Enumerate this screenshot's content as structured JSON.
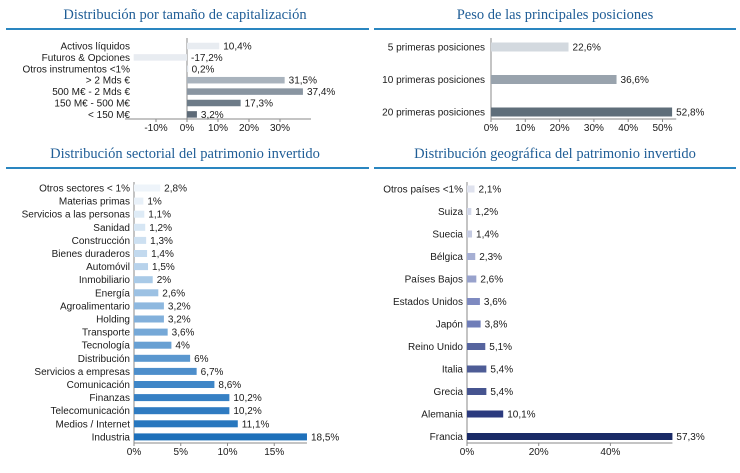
{
  "chart_data": [
    {
      "type": "bar",
      "orientation": "horizontal",
      "title": "Distribución por tamaño de capitalización",
      "categories": [
        "Activos líquidos",
        "Futuros & Opciones",
        "Otros instrumentos <1%",
        "> 2 Mds €",
        "500 M€ - 2 Mds €",
        "150 M€ - 500 M€",
        "< 150 M€"
      ],
      "values": [
        10.4,
        -17.2,
        0.2,
        31.5,
        37.4,
        17.3,
        3.2
      ],
      "labels": [
        "10,4%",
        "-17,2%",
        "0,2%",
        "31,5%",
        "37,4%",
        "17,3%",
        "3,2%"
      ],
      "colors": [
        "#e8ecf1",
        "#e8ecf1",
        "#dde3ea",
        "#a9b3bd",
        "#8995a1",
        "#6d7b88",
        "#5e6b78"
      ],
      "xlim": [
        -20,
        40
      ],
      "ticks": [
        -10,
        0,
        10,
        20,
        30
      ],
      "tick_labels": [
        "-10%",
        "0%",
        "10%",
        "20%",
        "30%"
      ]
    },
    {
      "type": "bar",
      "orientation": "horizontal",
      "title": "Peso de las principales posiciones",
      "categories": [
        "5 primeras posiciones",
        "10 primeras posiciones",
        "20 primeras posiciones"
      ],
      "values": [
        22.6,
        36.6,
        52.8
      ],
      "labels": [
        "22,6%",
        "36,6%",
        "52,8%"
      ],
      "colors": [
        "#d3d9df",
        "#99a3ad",
        "#5f6e7a"
      ],
      "xlim": [
        0,
        54
      ],
      "ticks": [
        0,
        10,
        20,
        30,
        40,
        50
      ],
      "tick_labels": [
        "0%",
        "10%",
        "20%",
        "30%",
        "40%",
        "50%"
      ]
    },
    {
      "type": "bar",
      "orientation": "horizontal",
      "title": "Distribución sectorial del patrimonio invertido",
      "categories": [
        "Otros sectores < 1%",
        "Materias primas",
        "Servicios a las personas",
        "Sanidad",
        "Construcción",
        "Bienes duraderos",
        "Automóvil",
        "Inmobiliario",
        "Energía",
        "Agroalimentario",
        "Holding",
        "Transporte",
        "Tecnología",
        "Distribución",
        "Servicios a empresas",
        "Comunicación",
        "Finanzas",
        "Telecomunicación",
        "Medios / Internet",
        "Industria"
      ],
      "values": [
        2.8,
        1,
        1.1,
        1.2,
        1.3,
        1.4,
        1.5,
        2,
        2.6,
        3.2,
        3.2,
        3.6,
        4,
        6,
        6.7,
        8.6,
        10.2,
        10.2,
        11.1,
        18.5
      ],
      "labels": [
        "2,8%",
        "1%",
        "1,1%",
        "1,2%",
        "1,3%",
        "1,4%",
        "1,5%",
        "2%",
        "2,6%",
        "3,2%",
        "3,2%",
        "3,6%",
        "4%",
        "6%",
        "6,7%",
        "8,6%",
        "10,2%",
        "10,2%",
        "11,1%",
        "18,5%"
      ],
      "colors": [
        "#eef4fa",
        "#e8f0f8",
        "#deebf6",
        "#d6e6f4",
        "#cde0f1",
        "#c2d9ee",
        "#b7d2eb",
        "#a9cae7",
        "#9cc1e3",
        "#8eb8df",
        "#82b0db",
        "#75a8d7",
        "#68a0d3",
        "#5a97cf",
        "#4d8ecb",
        "#3f86c7",
        "#3680c4",
        "#2f7bc1",
        "#2877be",
        "#1e70ba"
      ],
      "xlim": [
        0,
        18.5
      ],
      "ticks": [
        0,
        5,
        10,
        15
      ],
      "tick_labels": [
        "0%",
        "5%",
        "10%",
        "15%"
      ]
    },
    {
      "type": "bar",
      "orientation": "horizontal",
      "title": "Distribución geográfica del patrimonio invertido",
      "categories": [
        "Otros países <1%",
        "Suiza",
        "Suecia",
        "Bélgica",
        "Países Bajos",
        "Estados Unidos",
        "Japón",
        "Reino Unido",
        "Italia",
        "Grecia",
        "Alemania",
        "Francia"
      ],
      "values": [
        2.1,
        1.2,
        1.4,
        2.3,
        2.6,
        3.6,
        3.8,
        5.1,
        5.4,
        5.4,
        10.1,
        57.3
      ],
      "labels": [
        "2,1%",
        "1,2%",
        "1,4%",
        "2,3%",
        "2,6%",
        "3,6%",
        "3,8%",
        "5,1%",
        "5,4%",
        "5,4%",
        "10,1%",
        "57,3%"
      ],
      "colors": [
        "#dfe2ee",
        "#d2d7e8",
        "#c4cae1",
        "#a6afd3",
        "#98a2cc",
        "#7e8ac0",
        "#6f7db8",
        "#56649e",
        "#4e5c96",
        "#46548f",
        "#2b3a7e",
        "#1a2a66"
      ],
      "xlim": [
        0,
        57.3
      ],
      "ticks": [
        0,
        20,
        40
      ],
      "tick_labels": [
        "0%",
        "20%",
        "40%"
      ]
    }
  ]
}
